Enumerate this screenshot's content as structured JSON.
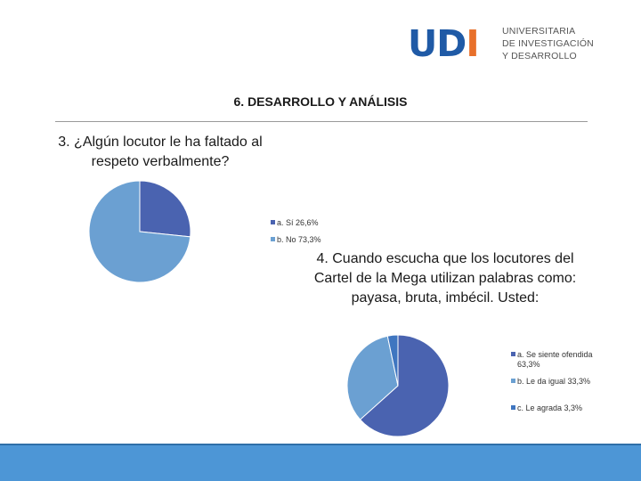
{
  "logo": {
    "mark": "UD",
    "mark_i": "I",
    "lines": [
      "UNIVERSITARIA",
      "DE INVESTIGACIÓN",
      "Y DESARROLLO"
    ]
  },
  "page_title": "6. DESARROLLO Y ANÁLISIS",
  "colors": {
    "series1": "#4a63b0",
    "series2": "#6ba0d2",
    "series3": "#3f76c0",
    "bar": "#4d96d6"
  },
  "chart_data": [
    {
      "type": "pie",
      "title": "3. ¿Algún locutor le ha faltado al respeto verbalmente?",
      "categories": [
        "a. Sí 26,6%",
        "b. No 73,3%"
      ],
      "values": [
        26.6,
        73.3
      ],
      "colors": [
        "#4a63b0",
        "#6ba0d2"
      ],
      "legend": "right"
    },
    {
      "type": "pie",
      "title": "4. Cuando escucha que los locutores del Cartel de la Mega utilizan palabras como: payasa, bruta, imbécil. Usted:",
      "categories": [
        "a. Se siente ofendida 63,3%",
        "b. Le da igual 33,3%",
        "c. Le agrada 3,3%"
      ],
      "values": [
        63.3,
        33.3,
        3.3
      ],
      "colors": [
        "#4a63b0",
        "#6ba0d2",
        "#3f76c0"
      ],
      "legend": "right"
    }
  ]
}
